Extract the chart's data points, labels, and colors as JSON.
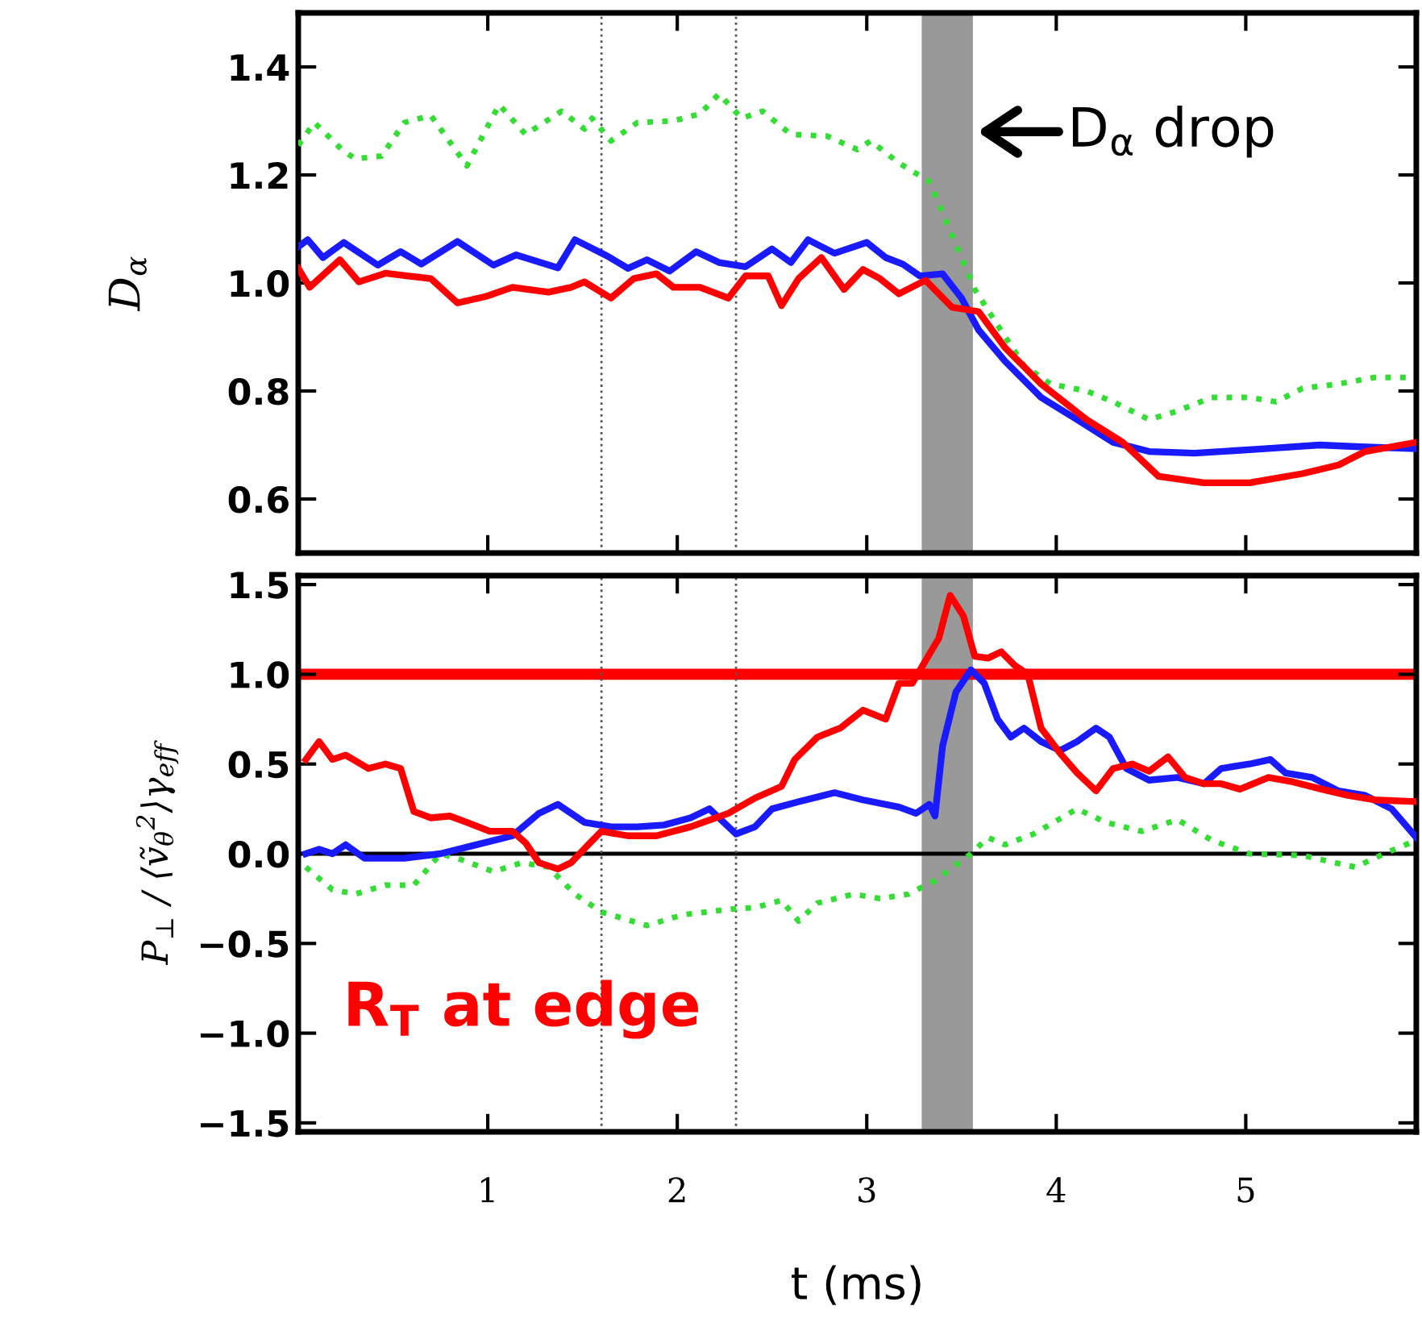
{
  "chart_data": [
    {
      "type": "line",
      "ylabel": "D$_{α}$",
      "xlim": [
        0,
        5.9
      ],
      "ylim": [
        0.5,
        1.5
      ],
      "xticks": [
        1,
        2,
        3,
        4,
        5
      ],
      "yticks": [
        {
          "value": 0.6,
          "label": "0.6"
        },
        {
          "value": 0.8,
          "label": "0.8"
        },
        {
          "value": 1.0,
          "label": "1.0"
        },
        {
          "value": 1.2,
          "label": "1.2"
        },
        {
          "value": 1.4,
          "label": "1.4"
        }
      ],
      "tick_labels": "y",
      "grid": false,
      "legend": false,
      "series": [
        {
          "color": "#33dd33",
          "line_style": "dotted",
          "x": [
            0,
            0.085,
            0.23,
            0.3,
            0.44,
            0.56,
            0.7,
            0.89,
            1.06,
            1.2,
            1.39,
            1.51,
            1.55,
            1.65,
            1.79,
            1.98,
            2.12,
            2.22,
            2.34,
            2.45,
            2.6,
            2.79,
            2.95,
            3.02,
            3.17,
            3.33,
            3.45,
            3.57,
            3.69,
            3.83,
            3.97,
            4.16,
            4.3,
            4.49,
            4.64,
            4.82,
            5.02,
            5.16,
            5.3,
            5.49,
            5.68,
            5.87
          ],
          "values": [
            1.255,
            1.297,
            1.247,
            1.23,
            1.235,
            1.297,
            1.31,
            1.217,
            1.33,
            1.275,
            1.318,
            1.285,
            1.305,
            1.263,
            1.297,
            1.3,
            1.313,
            1.35,
            1.305,
            1.318,
            1.275,
            1.272,
            1.247,
            1.263,
            1.222,
            1.188,
            1.088,
            0.988,
            0.922,
            0.847,
            0.813,
            0.8,
            0.78,
            0.747,
            0.763,
            0.788,
            0.788,
            0.78,
            0.805,
            0.813,
            0.825,
            0.825
          ]
        },
        {
          "color": "#1a1aff",
          "line_style": "solid",
          "x": [
            0,
            0.05,
            0.13,
            0.24,
            0.42,
            0.54,
            0.65,
            0.84,
            1.03,
            1.15,
            1.37,
            1.46,
            1.63,
            1.74,
            1.84,
            1.96,
            2.1,
            2.22,
            2.36,
            2.5,
            2.6,
            2.69,
            2.83,
            3.0,
            3.1,
            3.19,
            3.28,
            3.4,
            3.5,
            3.59,
            3.73,
            3.92,
            4.11,
            4.3,
            4.49,
            4.73,
            5.1,
            5.39,
            5.58,
            5.9
          ],
          "values": [
            1.067,
            1.08,
            1.047,
            1.075,
            1.033,
            1.058,
            1.035,
            1.077,
            1.033,
            1.052,
            1.028,
            1.08,
            1.05,
            1.027,
            1.043,
            1.022,
            1.058,
            1.038,
            1.03,
            1.063,
            1.038,
            1.08,
            1.055,
            1.075,
            1.047,
            1.035,
            1.013,
            1.017,
            0.972,
            0.913,
            0.855,
            0.788,
            0.747,
            0.705,
            0.688,
            0.685,
            0.693,
            0.7,
            0.697,
            0.693
          ]
        },
        {
          "color": "#ff0000",
          "line_style": "solid",
          "x": [
            0,
            0.06,
            0.22,
            0.32,
            0.46,
            0.58,
            0.7,
            0.84,
            0.99,
            1.13,
            1.32,
            1.44,
            1.51,
            1.65,
            1.77,
            1.89,
            1.98,
            2.12,
            2.27,
            2.36,
            2.48,
            2.55,
            2.64,
            2.76,
            2.88,
            2.98,
            3.07,
            3.17,
            3.31,
            3.45,
            3.59,
            3.73,
            3.92,
            4.16,
            4.35,
            4.54,
            4.78,
            5.02,
            5.3,
            5.49,
            5.63,
            5.9
          ],
          "values": [
            1.027,
            0.992,
            1.043,
            1.002,
            1.018,
            1.013,
            1.008,
            0.963,
            0.975,
            0.992,
            0.983,
            0.992,
            1.002,
            0.972,
            1.008,
            1.017,
            0.992,
            0.992,
            0.972,
            1.013,
            1.013,
            0.958,
            1.008,
            1.047,
            0.988,
            1.025,
            1.008,
            0.98,
            1.005,
            0.955,
            0.947,
            0.88,
            0.813,
            0.747,
            0.705,
            0.642,
            0.63,
            0.63,
            0.647,
            0.663,
            0.688,
            0.705
          ]
        }
      ],
      "ref_lines": [
        {
          "axis": "x",
          "value": 1.6,
          "color": "#555555",
          "line_style": "dotted"
        },
        {
          "axis": "x",
          "value": 2.31,
          "color": "#555555",
          "line_style": "dotted"
        }
      ],
      "bands": [
        {
          "axis": "x",
          "from": 3.29,
          "to": 3.56,
          "color": "#999999"
        }
      ],
      "annotations": [
        {
          "text": "D$_{α}$ drop",
          "x": 3.56,
          "y": 1.28
        }
      ]
    },
    {
      "type": "line",
      "xlabel": "t (ms)",
      "ylabel": "P$_{⊥}$ / ⟨ṽ$_{θ}$$^{2}$⟩γ$_{eff}$",
      "xlim": [
        0,
        5.9
      ],
      "ylim": [
        -1.55,
        1.55
      ],
      "xticks": [
        1,
        2,
        3,
        4,
        5
      ],
      "yticks": [
        {
          "value": -1.5,
          "label": "−1.5"
        },
        {
          "value": -1.0,
          "label": "−1.0"
        },
        {
          "value": -0.5,
          "label": "−0.5"
        },
        {
          "value": 0.0,
          "label": "0.0"
        },
        {
          "value": 0.5,
          "label": "0.5"
        },
        {
          "value": 1.0,
          "label": "1.0"
        },
        {
          "value": 1.5,
          "label": "1.5"
        }
      ],
      "grid": false,
      "legend": false,
      "series": [
        {
          "color": "#33dd33",
          "line_style": "dotted",
          "x": [
            0.04,
            0.18,
            0.3,
            0.46,
            0.61,
            0.75,
            0.84,
            1.03,
            1.18,
            1.32,
            1.46,
            1.6,
            1.84,
            2.03,
            2.27,
            2.41,
            2.55,
            2.64,
            2.74,
            2.93,
            3.07,
            3.22,
            3.36,
            3.55,
            3.64,
            3.73,
            3.88,
            4.11,
            4.26,
            4.45,
            4.64,
            4.82,
            5.02,
            5.3,
            5.58,
            5.73,
            5.9
          ],
          "values": [
            -0.075,
            -0.2,
            -0.225,
            -0.175,
            -0.175,
            0.0,
            -0.025,
            -0.1,
            -0.05,
            -0.075,
            -0.225,
            -0.325,
            -0.4,
            -0.34,
            -0.31,
            -0.3,
            -0.26,
            -0.375,
            -0.275,
            -0.225,
            -0.25,
            -0.225,
            -0.15,
            0.0,
            0.09,
            0.05,
            0.11,
            0.25,
            0.175,
            0.125,
            0.19,
            0.075,
            0.0,
            -0.01,
            -0.075,
            0.0,
            0.075
          ]
        },
        {
          "color": "#1a1aff",
          "line_style": "solid",
          "x": [
            0.04,
            0.11,
            0.18,
            0.25,
            0.35,
            0.56,
            0.75,
            0.94,
            1.13,
            1.27,
            1.37,
            1.51,
            1.65,
            1.79,
            1.93,
            2.07,
            2.17,
            2.22,
            2.31,
            2.41,
            2.5,
            2.64,
            2.83,
            2.98,
            3.17,
            3.26,
            3.33,
            3.36,
            3.4,
            3.47,
            3.55,
            3.62,
            3.69,
            3.76,
            3.83,
            3.92,
            4.02,
            4.11,
            4.21,
            4.28,
            4.37,
            4.49,
            4.64,
            4.78,
            4.87,
            5.02,
            5.13,
            5.21,
            5.35,
            5.49,
            5.63,
            5.77,
            5.9
          ],
          "values": [
            0.0,
            0.025,
            0.0,
            0.05,
            -0.025,
            -0.025,
            0.0,
            0.05,
            0.1,
            0.225,
            0.275,
            0.175,
            0.15,
            0.15,
            0.16,
            0.2,
            0.25,
            0.2,
            0.11,
            0.15,
            0.25,
            0.29,
            0.34,
            0.3,
            0.26,
            0.225,
            0.275,
            0.21,
            0.6,
            0.9,
            1.025,
            0.95,
            0.75,
            0.65,
            0.7,
            0.625,
            0.575,
            0.625,
            0.7,
            0.65,
            0.475,
            0.41,
            0.425,
            0.39,
            0.475,
            0.5,
            0.525,
            0.45,
            0.425,
            0.35,
            0.325,
            0.25,
            0.09
          ]
        },
        {
          "color": "#ff0000",
          "line_style": "solid",
          "x": [
            0.04,
            0.11,
            0.18,
            0.25,
            0.37,
            0.46,
            0.54,
            0.61,
            0.7,
            0.8,
            0.89,
            1.01,
            1.13,
            1.2,
            1.27,
            1.37,
            1.44,
            1.53,
            1.6,
            1.74,
            1.89,
            2.07,
            2.27,
            2.41,
            2.55,
            2.62,
            2.74,
            2.86,
            2.98,
            3.1,
            3.17,
            3.24,
            3.31,
            3.38,
            3.44,
            3.51,
            3.57,
            3.64,
            3.71,
            3.78,
            3.85,
            3.92,
            4.02,
            4.11,
            4.21,
            4.3,
            4.4,
            4.49,
            4.59,
            4.68,
            4.78,
            4.87,
            4.97,
            5.12,
            5.25,
            5.4,
            5.54,
            5.68,
            5.9
          ],
          "values": [
            0.525,
            0.625,
            0.525,
            0.55,
            0.475,
            0.5,
            0.475,
            0.235,
            0.2,
            0.21,
            0.175,
            0.125,
            0.125,
            0.06,
            -0.05,
            -0.085,
            -0.05,
            0.05,
            0.125,
            0.1,
            0.1,
            0.15,
            0.225,
            0.31,
            0.375,
            0.525,
            0.65,
            0.7,
            0.8,
            0.75,
            0.95,
            0.95,
            1.075,
            1.2,
            1.44,
            1.325,
            1.1,
            1.09,
            1.125,
            1.05,
            1.0,
            0.7,
            0.56,
            0.45,
            0.35,
            0.475,
            0.5,
            0.46,
            0.54,
            0.425,
            0.39,
            0.39,
            0.36,
            0.425,
            0.4,
            0.36,
            0.325,
            0.3,
            0.29
          ]
        }
      ],
      "ref_lines": [
        {
          "axis": "y",
          "value": 1.0,
          "color": "#ff0000",
          "line_style": "solid"
        },
        {
          "axis": "y",
          "value": 0.0,
          "color": "#000000",
          "line_style": "solid"
        },
        {
          "axis": "x",
          "value": 1.6,
          "color": "#555555",
          "line_style": "dotted"
        },
        {
          "axis": "x",
          "value": 2.31,
          "color": "#555555",
          "line_style": "dotted"
        }
      ],
      "bands": [
        {
          "axis": "x",
          "from": 3.29,
          "to": 3.56,
          "color": "#999999"
        }
      ],
      "annotations": [
        "R$_{T}$ at edge"
      ]
    }
  ]
}
